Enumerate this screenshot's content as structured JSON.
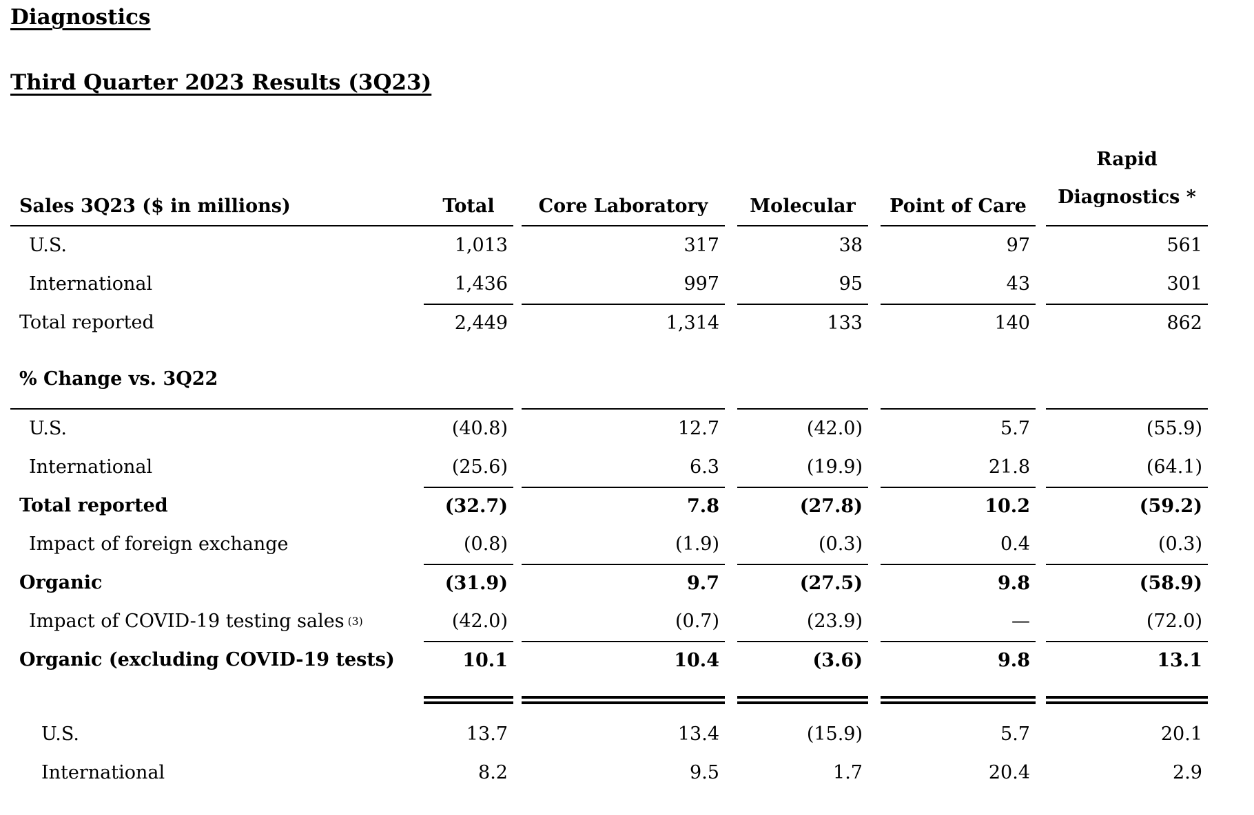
{
  "page": {
    "title": "Diagnostics",
    "subtitle": "Third Quarter 2023 Results (3Q23)"
  },
  "table": {
    "corner_label": "Sales 3Q23 ($ in millions)",
    "columns": [
      {
        "key": "total",
        "label": "Total"
      },
      {
        "key": "core-laboratory",
        "label": "Core Laboratory"
      },
      {
        "key": "molecular",
        "label": "Molecular"
      },
      {
        "key": "point-of-care",
        "label": "Point of Care"
      },
      {
        "key": "rapid-diagnostics",
        "label": "Rapid Diagnostics *",
        "lines": [
          "Rapid",
          "Diagnostics *"
        ]
      }
    ],
    "rows": [
      {
        "kind": "data",
        "label": "U.S.",
        "indent": 1,
        "values": [
          "1,013",
          "317",
          "38",
          "97",
          "561"
        ]
      },
      {
        "kind": "data",
        "label": "International",
        "indent": 1,
        "values": [
          "1,436",
          "997",
          "95",
          "43",
          "301"
        ]
      },
      {
        "kind": "data",
        "label": "Total reported",
        "indent": 0,
        "rule_top": true,
        "values": [
          "2,449",
          "1,314",
          "133",
          "140",
          "862"
        ]
      },
      {
        "kind": "section",
        "label": "% Change vs. 3Q22"
      },
      {
        "kind": "data",
        "label": "U.S.",
        "indent": 1,
        "values": [
          "(40.8)",
          "12.7",
          "(42.0)",
          "5.7",
          "(55.9)"
        ]
      },
      {
        "kind": "data",
        "label": "International",
        "indent": 1,
        "values": [
          "(25.6)",
          "6.3",
          "(19.9)",
          "21.8",
          "(64.1)"
        ]
      },
      {
        "kind": "data",
        "label": "Total reported",
        "indent": 0,
        "bold": true,
        "rule_top": true,
        "values": [
          "(32.7)",
          "7.8",
          "(27.8)",
          "10.2",
          "(59.2)"
        ]
      },
      {
        "kind": "data",
        "label": "Impact of foreign exchange",
        "indent": 1,
        "values": [
          "(0.8)",
          "(1.9)",
          "(0.3)",
          "0.4",
          "(0.3)"
        ]
      },
      {
        "kind": "data",
        "label": "Organic",
        "indent": 0,
        "bold": true,
        "rule_top": true,
        "values": [
          "(31.9)",
          "9.7",
          "(27.5)",
          "9.8",
          "(58.9)"
        ]
      },
      {
        "kind": "data",
        "label": "Impact of COVID-19 testing sales",
        "sup": "(3)",
        "indent": 1,
        "values": [
          "(42.0)",
          "(0.7)",
          "(23.9)",
          "—",
          "(72.0)"
        ]
      },
      {
        "kind": "data",
        "label": "Organic (excluding COVID-19 tests)",
        "indent": 0,
        "bold": true,
        "rule_top": true,
        "values": [
          "10.1",
          "10.4",
          "(3.6)",
          "9.8",
          "13.1"
        ]
      },
      {
        "kind": "doublerule"
      },
      {
        "kind": "data",
        "label": "U.S.",
        "indent": 2,
        "gap_top": true,
        "values": [
          "13.7",
          "13.4",
          "(15.9)",
          "5.7",
          "20.1"
        ]
      },
      {
        "kind": "data",
        "label": "International",
        "indent": 2,
        "values": [
          "8.2",
          "9.5",
          "1.7",
          "20.4",
          "2.9"
        ]
      }
    ]
  }
}
